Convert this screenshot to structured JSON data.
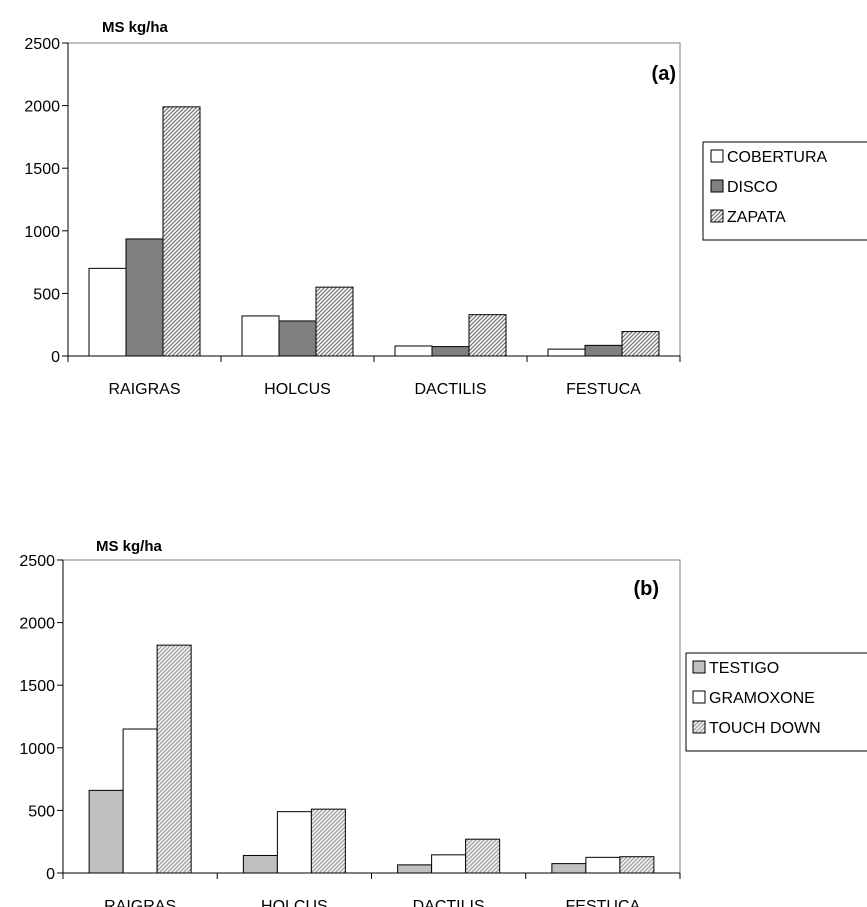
{
  "chart_data": [
    {
      "type": "bar",
      "panel_label": "(a)",
      "ylabel": "MS kg/ha",
      "ylim": [
        0,
        2500
      ],
      "yticks": [
        0,
        500,
        1000,
        1500,
        2000,
        2500
      ],
      "categories": [
        "RAIGRAS",
        "HOLCUS",
        "DACTILIS",
        "FESTUCA"
      ],
      "legend_position": "right",
      "series": [
        {
          "name": "COBERTURA",
          "values": [
            700,
            320,
            80,
            55
          ],
          "fill": "#ffffff"
        },
        {
          "name": "DISCO",
          "values": [
            935,
            280,
            75,
            85
          ],
          "fill": "#808080"
        },
        {
          "name": "ZAPATA",
          "values": [
            1990,
            550,
            330,
            195
          ],
          "fill": "hatch"
        }
      ]
    },
    {
      "type": "bar",
      "panel_label": "(b)",
      "ylabel": "MS kg/ha",
      "ylim": [
        0,
        2500
      ],
      "yticks": [
        0,
        500,
        1000,
        1500,
        2000,
        2500
      ],
      "categories": [
        "RAIGRAS",
        "HOLCUS",
        "DACTILIS",
        "FESTUCA"
      ],
      "legend_position": "right",
      "series": [
        {
          "name": "TESTIGO",
          "values": [
            660,
            140,
            65,
            75
          ],
          "fill": "#c0c0c0"
        },
        {
          "name": "GRAMOXONE",
          "values": [
            1150,
            490,
            145,
            125
          ],
          "fill": "#ffffff"
        },
        {
          "name": "TOUCH DOWN",
          "values": [
            1820,
            510,
            270,
            130
          ],
          "fill": "hatch-light"
        }
      ]
    }
  ]
}
